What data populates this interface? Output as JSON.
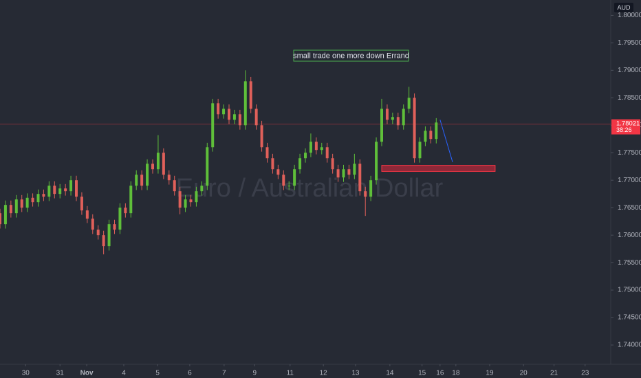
{
  "chart_data": {
    "type": "candlestick",
    "watermark": "Euro / Australian Dollar",
    "currency": "AUD",
    "annotation": "small trade one more down Errand",
    "last_price": 1.78021,
    "countdown": "38:26",
    "up_color": "#5fbf3a",
    "down_color": "#e0605a",
    "last_price_color": "#f23645",
    "zone": {
      "x": [
        70,
        90.8
      ],
      "y": [
        1.7727,
        1.7716
      ],
      "color": "#b2283a"
    },
    "projection": {
      "x": [
        80.7,
        83
      ],
      "y": [
        1.781,
        1.7733
      ],
      "color": "#2962ff"
    },
    "xlim": [
      0,
      112
    ],
    "xticks": [
      {
        "value": 4.7,
        "label": "30"
      },
      {
        "value": 11,
        "label": "31"
      },
      {
        "value": 15.9,
        "label": "Nov"
      },
      {
        "value": 22.7,
        "label": "4"
      },
      {
        "value": 28.9,
        "label": "5"
      },
      {
        "value": 34.8,
        "label": "6"
      },
      {
        "value": 41.1,
        "label": "7"
      },
      {
        "value": 46.7,
        "label": "9"
      },
      {
        "value": 53.2,
        "label": "11"
      },
      {
        "value": 59.3,
        "label": "12"
      },
      {
        "value": 65.2,
        "label": "13"
      },
      {
        "value": 71.5,
        "label": "14"
      },
      {
        "value": 77.4,
        "label": "15"
      },
      {
        "value": 80.7,
        "label": "16"
      },
      {
        "value": 83.6,
        "label": "18"
      },
      {
        "value": 89.8,
        "label": "19"
      },
      {
        "value": 96,
        "label": "20"
      },
      {
        "value": 101.6,
        "label": "21"
      },
      {
        "value": 107.3,
        "label": "23"
      }
    ],
    "ylim": [
      1.7365,
      1.8028
    ],
    "yticks": [
      {
        "value": 1.74,
        "label": "1.74000"
      },
      {
        "value": 1.745,
        "label": "1.74500"
      },
      {
        "value": 1.75,
        "label": "1.75000"
      },
      {
        "value": 1.755,
        "label": "1.75500"
      },
      {
        "value": 1.76,
        "label": "1.76000"
      },
      {
        "value": 1.765,
        "label": "1.76500"
      },
      {
        "value": 1.77,
        "label": "1.77000"
      },
      {
        "value": 1.775,
        "label": "1.77500"
      },
      {
        "value": 1.78,
        "label": "1.78000"
      },
      {
        "value": 1.785,
        "label": "1.78500"
      },
      {
        "value": 1.79,
        "label": "1.79000"
      },
      {
        "value": 1.795,
        "label": "1.79500"
      },
      {
        "value": 1.8,
        "label": "1.80000"
      }
    ],
    "open": [
      1.764,
      1.762,
      1.7655,
      1.764,
      1.7665,
      1.765,
      1.7668,
      1.766,
      1.7675,
      1.767,
      1.769,
      1.7675,
      1.7685,
      1.768,
      1.77,
      1.767,
      1.7645,
      1.763,
      1.761,
      1.76,
      1.758,
      1.762,
      1.761,
      1.765,
      1.764,
      1.769,
      1.771,
      1.769,
      1.773,
      1.772,
      1.775,
      1.771,
      1.77,
      1.768,
      1.765,
      1.7665,
      1.766,
      1.768,
      1.769,
      1.776,
      1.784,
      1.782,
      1.783,
      1.781,
      1.782,
      1.78,
      1.788,
      1.783,
      1.78,
      1.776,
      1.774,
      1.772,
      1.771,
      1.769,
      1.769,
      1.772,
      1.774,
      1.775,
      1.777,
      1.7755,
      1.776,
      1.774,
      1.772,
      1.7705,
      1.772,
      1.771,
      1.773,
      1.768,
      1.767,
      1.77,
      1.777,
      1.783,
      1.781,
      1.7815,
      1.78,
      1.783,
      1.785,
      1.774,
      1.777,
      1.779,
      1.7775
    ],
    "high": [
      1.7648,
      1.7663,
      1.7663,
      1.7673,
      1.7673,
      1.7676,
      1.7676,
      1.7683,
      1.7683,
      1.7698,
      1.7698,
      1.7693,
      1.7693,
      1.7708,
      1.7708,
      1.7678,
      1.7653,
      1.7638,
      1.7618,
      1.7608,
      1.7628,
      1.7628,
      1.7658,
      1.7658,
      1.7698,
      1.7718,
      1.7718,
      1.7738,
      1.7738,
      1.7782,
      1.7758,
      1.7718,
      1.7708,
      1.7688,
      1.7673,
      1.7673,
      1.7688,
      1.7698,
      1.7768,
      1.7848,
      1.7848,
      1.7838,
      1.7838,
      1.7828,
      1.7828,
      1.79,
      1.7888,
      1.7838,
      1.7808,
      1.7768,
      1.7748,
      1.7728,
      1.7718,
      1.7698,
      1.7728,
      1.7748,
      1.7758,
      1.7785,
      1.7778,
      1.7768,
      1.7768,
      1.7748,
      1.7728,
      1.7728,
      1.7728,
      1.7748,
      1.7738,
      1.7688,
      1.7708,
      1.7778,
      1.7848,
      1.7838,
      1.7823,
      1.7823,
      1.7838,
      1.787,
      1.7858,
      1.7778,
      1.7798,
      1.7798,
      1.7813
    ],
    "low": [
      1.7612,
      1.7612,
      1.7632,
      1.7632,
      1.7642,
      1.7642,
      1.7652,
      1.7652,
      1.7662,
      1.7662,
      1.7667,
      1.7667,
      1.7672,
      1.7672,
      1.7662,
      1.7637,
      1.7622,
      1.7602,
      1.7592,
      1.7565,
      1.7572,
      1.7602,
      1.7602,
      1.7632,
      1.7632,
      1.7682,
      1.7682,
      1.7682,
      1.7712,
      1.7712,
      1.7702,
      1.7692,
      1.7672,
      1.7638,
      1.7642,
      1.7652,
      1.7652,
      1.7672,
      1.7682,
      1.7752,
      1.7812,
      1.7812,
      1.7802,
      1.7802,
      1.7792,
      1.7792,
      1.7822,
      1.7792,
      1.7752,
      1.7732,
      1.7712,
      1.7702,
      1.7682,
      1.7682,
      1.7682,
      1.7712,
      1.7732,
      1.7742,
      1.7747,
      1.7747,
      1.7732,
      1.7712,
      1.7697,
      1.7697,
      1.7702,
      1.7702,
      1.7672,
      1.7635,
      1.7662,
      1.7692,
      1.7762,
      1.7802,
      1.7802,
      1.7792,
      1.7792,
      1.7822,
      1.7732,
      1.7732,
      1.7762,
      1.7767,
      1.7767
    ],
    "close": [
      1.762,
      1.7655,
      1.764,
      1.7665,
      1.765,
      1.7668,
      1.766,
      1.7675,
      1.767,
      1.769,
      1.7675,
      1.7685,
      1.768,
      1.77,
      1.767,
      1.7645,
      1.763,
      1.761,
      1.76,
      1.758,
      1.762,
      1.761,
      1.765,
      1.764,
      1.769,
      1.771,
      1.769,
      1.773,
      1.772,
      1.775,
      1.771,
      1.77,
      1.768,
      1.765,
      1.7665,
      1.766,
      1.768,
      1.769,
      1.776,
      1.784,
      1.782,
      1.783,
      1.781,
      1.782,
      1.78,
      1.788,
      1.783,
      1.78,
      1.776,
      1.774,
      1.772,
      1.771,
      1.769,
      1.769,
      1.772,
      1.774,
      1.775,
      1.777,
      1.7755,
      1.776,
      1.774,
      1.772,
      1.7705,
      1.772,
      1.771,
      1.773,
      1.768,
      1.767,
      1.77,
      1.777,
      1.783,
      1.781,
      1.7815,
      1.78,
      1.783,
      1.785,
      1.774,
      1.777,
      1.779,
      1.7775,
      1.7805
    ]
  }
}
